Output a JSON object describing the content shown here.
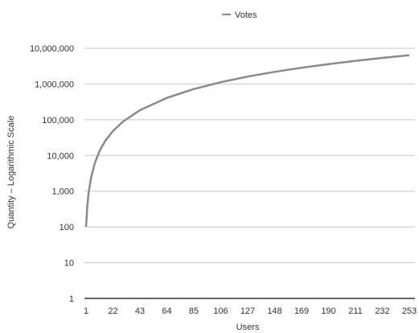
{
  "chart_data": {
    "type": "line",
    "title": "",
    "xlabel": "Users",
    "ylabel": "Quantity – Logarithmic Scale",
    "y_scale": "log",
    "ylim": [
      1,
      10000000
    ],
    "y_ticks": [
      1,
      10,
      100,
      1000,
      10000,
      100000,
      1000000,
      10000000
    ],
    "y_tick_labels": [
      "1",
      "10",
      "100",
      "1,000",
      "10,000",
      "100,000",
      "1,000,000",
      "10,000,000"
    ],
    "x_tick_labels": [
      "1",
      "22",
      "43",
      "64",
      "85",
      "106",
      "127",
      "148",
      "169",
      "190",
      "211",
      "232",
      "253"
    ],
    "grid": true,
    "legend": "top-center",
    "series": [
      {
        "name": "Votes",
        "color": "#8a8a8a",
        "x": [
          1,
          2,
          3,
          5,
          8,
          12,
          16,
          22,
          30,
          43,
          64,
          85,
          106,
          127,
          148,
          169,
          190,
          211,
          232,
          253
        ],
        "values": [
          100,
          400,
          900,
          2500,
          6400,
          14400,
          25600,
          48400,
          90000,
          184900,
          409600,
          722500,
          1123600,
          1612900,
          2190400,
          2856100,
          3610000,
          4452100,
          5382400,
          6400900
        ]
      }
    ]
  }
}
